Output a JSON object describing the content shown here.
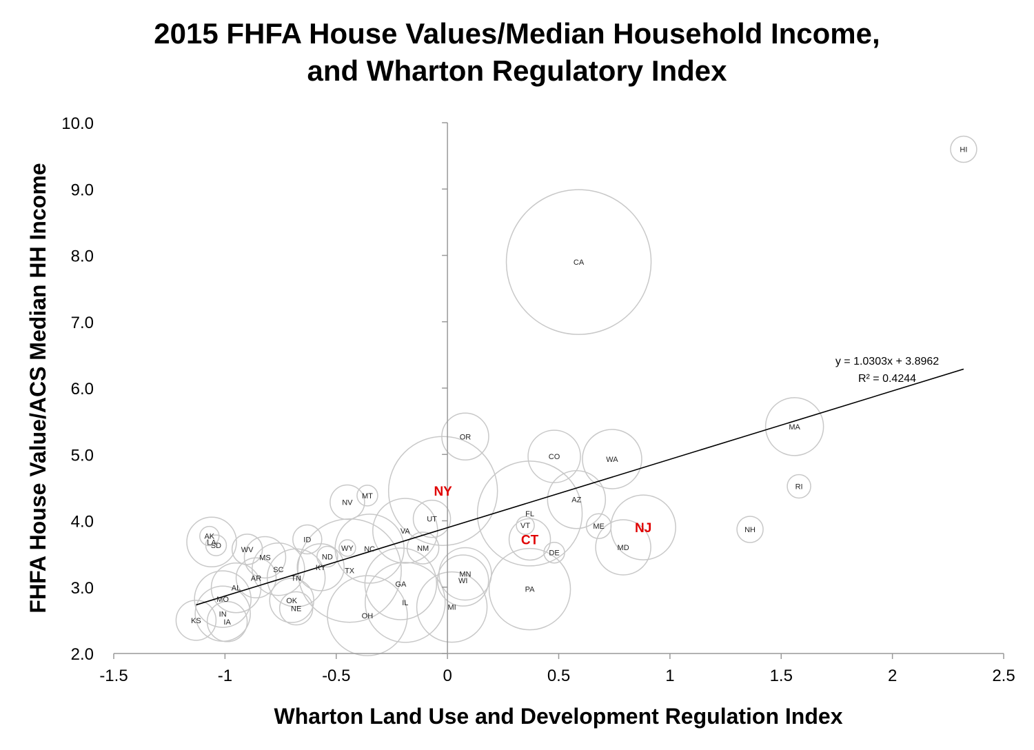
{
  "chart_data": {
    "type": "scatter",
    "title_lines": [
      "2015 FHFA House Values/Median Household Income,",
      "and Wharton Regulatory Index"
    ],
    "xlabel": "Wharton Land Use and Development Regulation Index",
    "ylabel": "FHFA House Value/ACS Median HH Income",
    "xlim": [
      -1.5,
      2.5
    ],
    "ylim": [
      2.0,
      10.0
    ],
    "x_ticks": [
      "-1.5",
      "-1",
      "-0.5",
      "0",
      "0.5",
      "1",
      "1.5",
      "2",
      "2.5"
    ],
    "y_ticks": [
      "2.0",
      "3.0",
      "4.0",
      "5.0",
      "6.0",
      "7.0",
      "8.0",
      "9.0",
      "10.0"
    ],
    "bubble_scale": "population",
    "points": [
      {
        "label": "HI",
        "x": 2.32,
        "y": 9.6,
        "size": 19
      },
      {
        "label": "CA",
        "x": 0.59,
        "y": 7.9,
        "size": 105
      },
      {
        "label": "MA",
        "x": 1.56,
        "y": 5.42,
        "size": 42
      },
      {
        "label": "RI",
        "x": 1.58,
        "y": 4.52,
        "size": 17
      },
      {
        "label": "NH",
        "x": 1.36,
        "y": 3.87,
        "size": 19
      },
      {
        "label": "OR",
        "x": 0.08,
        "y": 5.27,
        "size": 34
      },
      {
        "label": "CO",
        "x": 0.48,
        "y": 4.97,
        "size": 38
      },
      {
        "label": "WA",
        "x": 0.74,
        "y": 4.93,
        "size": 43
      },
      {
        "label": "AZ",
        "x": 0.58,
        "y": 4.32,
        "size": 42
      },
      {
        "label": "NY",
        "x": -0.02,
        "y": 4.45,
        "size": 79,
        "highlight": true
      },
      {
        "label": "NJ",
        "x": 0.88,
        "y": 3.9,
        "size": 47,
        "highlight": true
      },
      {
        "label": "CT",
        "x": 0.37,
        "y": 3.72,
        "size": 30,
        "highlight": true
      },
      {
        "label": "FL",
        "x": 0.37,
        "y": 4.11,
        "size": 76
      },
      {
        "label": "VT",
        "x": 0.35,
        "y": 3.93,
        "size": 13
      },
      {
        "label": "ME",
        "x": 0.68,
        "y": 3.92,
        "size": 18
      },
      {
        "label": "MD",
        "x": 0.79,
        "y": 3.6,
        "size": 40
      },
      {
        "label": "DE",
        "x": 0.48,
        "y": 3.52,
        "size": 15
      },
      {
        "label": "PA",
        "x": 0.37,
        "y": 2.97,
        "size": 59
      },
      {
        "label": "MN",
        "x": 0.08,
        "y": 3.2,
        "size": 38
      },
      {
        "label": "WI",
        "x": 0.07,
        "y": 3.1,
        "size": 37
      },
      {
        "label": "MI",
        "x": 0.02,
        "y": 2.7,
        "size": 51
      },
      {
        "label": "IL",
        "x": -0.19,
        "y": 2.77,
        "size": 58
      },
      {
        "label": "GA",
        "x": -0.21,
        "y": 3.05,
        "size": 52
      },
      {
        "label": "OH",
        "x": -0.36,
        "y": 2.57,
        "size": 58
      },
      {
        "label": "UT",
        "x": -0.07,
        "y": 4.03,
        "size": 27
      },
      {
        "label": "VA",
        "x": -0.19,
        "y": 3.85,
        "size": 47
      },
      {
        "label": "NM",
        "x": -0.11,
        "y": 3.59,
        "size": 23
      },
      {
        "label": "NC",
        "x": -0.35,
        "y": 3.58,
        "size": 50
      },
      {
        "label": "TX",
        "x": -0.44,
        "y": 3.25,
        "size": 75
      },
      {
        "label": "WY",
        "x": -0.45,
        "y": 3.59,
        "size": 12
      },
      {
        "label": "NV",
        "x": -0.45,
        "y": 4.28,
        "size": 25
      },
      {
        "label": "MT",
        "x": -0.36,
        "y": 4.38,
        "size": 15
      },
      {
        "label": "ID",
        "x": -0.63,
        "y": 3.72,
        "size": 21
      },
      {
        "label": "ND",
        "x": -0.54,
        "y": 3.46,
        "size": 15
      },
      {
        "label": "KY",
        "x": -0.57,
        "y": 3.3,
        "size": 34
      },
      {
        "label": "TN",
        "x": -0.68,
        "y": 3.14,
        "size": 42
      },
      {
        "label": "SC",
        "x": -0.76,
        "y": 3.27,
        "size": 38
      },
      {
        "label": "MS",
        "x": -0.82,
        "y": 3.45,
        "size": 30
      },
      {
        "label": "WV",
        "x": -0.9,
        "y": 3.57,
        "size": 22
      },
      {
        "label": "AR",
        "x": -0.86,
        "y": 3.14,
        "size": 29
      },
      {
        "label": "AL",
        "x": -0.95,
        "y": 2.99,
        "size": 36
      },
      {
        "label": "OK",
        "x": -0.7,
        "y": 2.8,
        "size": 32
      },
      {
        "label": "NE",
        "x": -0.68,
        "y": 2.68,
        "size": 24
      },
      {
        "label": "AK",
        "x": -1.07,
        "y": 3.77,
        "size": 14
      },
      {
        "label": "LA",
        "x": -1.06,
        "y": 3.68,
        "size": 36
      },
      {
        "label": "SD",
        "x": -1.04,
        "y": 3.63,
        "size": 15
      },
      {
        "label": "MO",
        "x": -1.01,
        "y": 2.82,
        "size": 41
      },
      {
        "label": "IN",
        "x": -1.01,
        "y": 2.6,
        "size": 40
      },
      {
        "label": "IA",
        "x": -0.99,
        "y": 2.48,
        "size": 29
      },
      {
        "label": "KS",
        "x": -1.13,
        "y": 2.5,
        "size": 29
      }
    ],
    "trendline": {
      "slope": 1.0303,
      "intercept": 3.8962,
      "x_range": [
        -1.13,
        2.32
      ],
      "equation_text": "y = 1.0303x + 3.8962",
      "r2_text": "R² = 0.4244"
    },
    "colors": {
      "bubble_stroke": "#c8c8c8",
      "highlight": "#e00000",
      "axis": "#999999",
      "trend": "#000000"
    },
    "grid": false,
    "legend": "none"
  }
}
